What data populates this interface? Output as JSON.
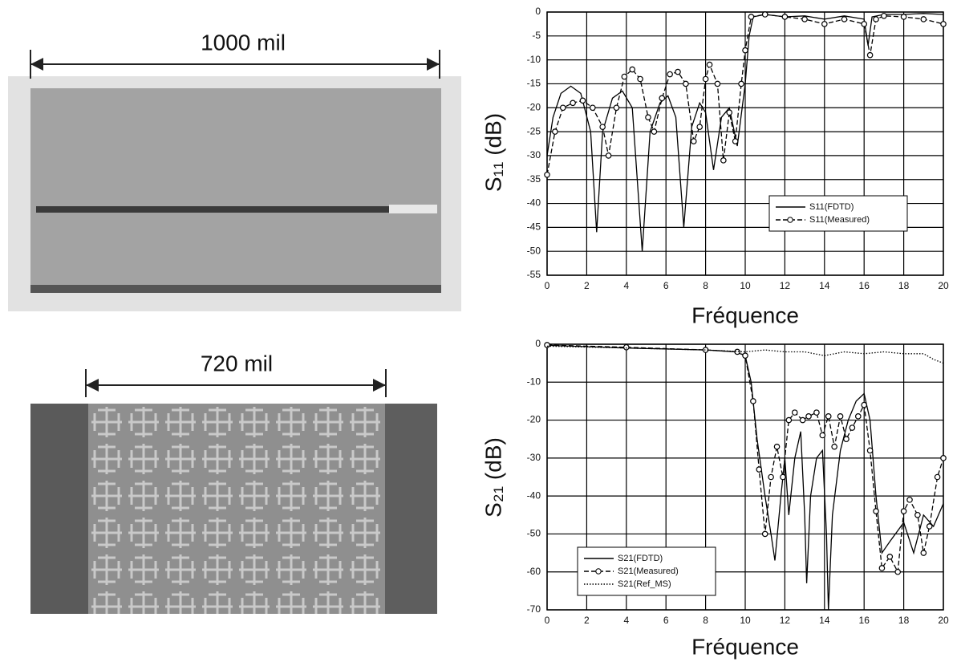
{
  "photos": [
    {
      "label": "1000 mil"
    },
    {
      "label": "720 mil"
    }
  ],
  "chart_data": [
    {
      "type": "line",
      "ylabel": "S₁₁ (dB)",
      "xlabel": "Fréquence",
      "xlim": [
        0,
        20
      ],
      "xticks": [
        0,
        2,
        4,
        6,
        8,
        10,
        12,
        14,
        16,
        18,
        20
      ],
      "ylim": [
        -55,
        0
      ],
      "yticks": [
        0,
        -5,
        -10,
        -15,
        -20,
        -25,
        -30,
        -35,
        -40,
        -45,
        -50,
        -55
      ],
      "grid": true,
      "legend": "lower right",
      "series": [
        {
          "name": "S11(FDTD)",
          "color": "#000000",
          "style": "solid",
          "marker": "none",
          "x": [
            0,
            0.3,
            0.7,
            1.2,
            1.7,
            2.2,
            2.5,
            2.8,
            3.3,
            3.8,
            4.3,
            4.8,
            5.2,
            5.7,
            6.1,
            6.5,
            6.9,
            7.3,
            7.7,
            8.0,
            8.4,
            8.8,
            9.2,
            9.6,
            10.0,
            10.2,
            10.4,
            11,
            12,
            13,
            14,
            15,
            16,
            16.2,
            16.4,
            17,
            18,
            19,
            20
          ],
          "values": [
            -30,
            -22,
            -17,
            -15.5,
            -17,
            -25,
            -46,
            -25,
            -18,
            -16.5,
            -20,
            -50,
            -25,
            -19,
            -17.5,
            -22,
            -45,
            -24,
            -19,
            -21,
            -33,
            -22,
            -20,
            -28,
            -15,
            -5,
            -1,
            -0.5,
            -1,
            -0.8,
            -1.5,
            -0.8,
            -1.5,
            -7,
            -1,
            -0.5,
            -0.5,
            -0.3,
            -0.5
          ]
        },
        {
          "name": "S11(Measured)",
          "color": "#000000",
          "style": "dashed",
          "marker": "circle",
          "x": [
            0,
            0.4,
            0.8,
            1.3,
            1.8,
            2.3,
            2.8,
            3.1,
            3.5,
            3.9,
            4.3,
            4.7,
            5.1,
            5.4,
            5.8,
            6.2,
            6.6,
            7.0,
            7.4,
            7.7,
            8.0,
            8.2,
            8.6,
            8.9,
            9.2,
            9.5,
            9.8,
            10.0,
            10.3,
            11,
            12,
            13,
            14,
            15,
            16,
            16.3,
            16.6,
            17,
            18,
            19,
            20
          ],
          "values": [
            -34,
            -25,
            -20,
            -19,
            -18.5,
            -20,
            -24,
            -30,
            -20,
            -13.5,
            -12,
            -14,
            -22,
            -25,
            -18,
            -13,
            -12.5,
            -15,
            -27,
            -24,
            -14,
            -11,
            -15,
            -31,
            -21,
            -27,
            -15,
            -8,
            -1,
            -0.5,
            -1,
            -1.5,
            -2.5,
            -1.5,
            -2.5,
            -9,
            -1.5,
            -0.8,
            -1,
            -1.5,
            -2.5
          ]
        }
      ]
    },
    {
      "type": "line",
      "ylabel": "S₂₁ (dB)",
      "xlabel": "Fréquence",
      "xlim": [
        0,
        20
      ],
      "xticks": [
        0,
        2,
        4,
        6,
        8,
        10,
        12,
        14,
        16,
        18,
        20
      ],
      "ylim": [
        -70,
        0
      ],
      "yticks": [
        0,
        -10,
        -20,
        -30,
        -40,
        -50,
        -60,
        -70
      ],
      "grid": true,
      "legend": "lower left",
      "series": [
        {
          "name": "S21(FDTD)",
          "color": "#000000",
          "style": "solid",
          "marker": "none",
          "x": [
            0,
            4,
            8,
            9.5,
            10,
            10.3,
            10.6,
            11,
            11.3,
            11.5,
            11.8,
            12,
            12.2,
            12.5,
            12.8,
            13,
            13.1,
            13.3,
            13.6,
            13.9,
            14.1,
            14.2,
            14.4,
            14.8,
            15.2,
            15.6,
            16,
            16.3,
            16.6,
            16.9,
            17.3,
            18,
            18.5,
            19,
            19.5,
            20
          ],
          "values": [
            -0.3,
            -1,
            -1.5,
            -2,
            -3,
            -10,
            -25,
            -40,
            -50,
            -57,
            -40,
            -30,
            -45,
            -30,
            -23,
            -45,
            -63,
            -40,
            -30,
            -28,
            -50,
            -70,
            -45,
            -28,
            -20,
            -15,
            -13,
            -20,
            -40,
            -55,
            -52,
            -47,
            -55,
            -45,
            -48,
            -42
          ]
        },
        {
          "name": "S21(Measured)",
          "color": "#000000",
          "style": "dashed",
          "marker": "circle",
          "x": [
            0,
            4,
            8,
            9.6,
            10,
            10.4,
            10.7,
            11,
            11.3,
            11.6,
            11.9,
            12.2,
            12.5,
            12.9,
            13.2,
            13.6,
            13.9,
            14.2,
            14.5,
            14.8,
            15.1,
            15.4,
            15.7,
            16,
            16.3,
            16.6,
            16.9,
            17.3,
            17.7,
            18,
            18.3,
            18.7,
            19,
            19.3,
            19.7,
            20
          ],
          "values": [
            -0.2,
            -0.8,
            -1.5,
            -2,
            -3,
            -15,
            -33,
            -50,
            -35,
            -27,
            -35,
            -20,
            -18,
            -20,
            -19,
            -18,
            -24,
            -19,
            -27,
            -19,
            -25,
            -22,
            -19,
            -16,
            -28,
            -44,
            -59,
            -56,
            -60,
            -44,
            -41,
            -45,
            -55,
            -48,
            -35,
            -30
          ]
        },
        {
          "name": "S21(Ref_MS)",
          "color": "#000000",
          "style": "dotted",
          "marker": "none",
          "x": [
            0,
            4,
            8,
            10,
            11,
            12,
            13,
            14,
            15,
            16,
            17,
            18,
            19,
            19.5,
            20
          ],
          "values": [
            -0.5,
            -1,
            -1.5,
            -2,
            -1.5,
            -2,
            -2,
            -3,
            -2,
            -2.5,
            -2,
            -2.5,
            -2.5,
            -4,
            -5
          ]
        }
      ]
    }
  ]
}
